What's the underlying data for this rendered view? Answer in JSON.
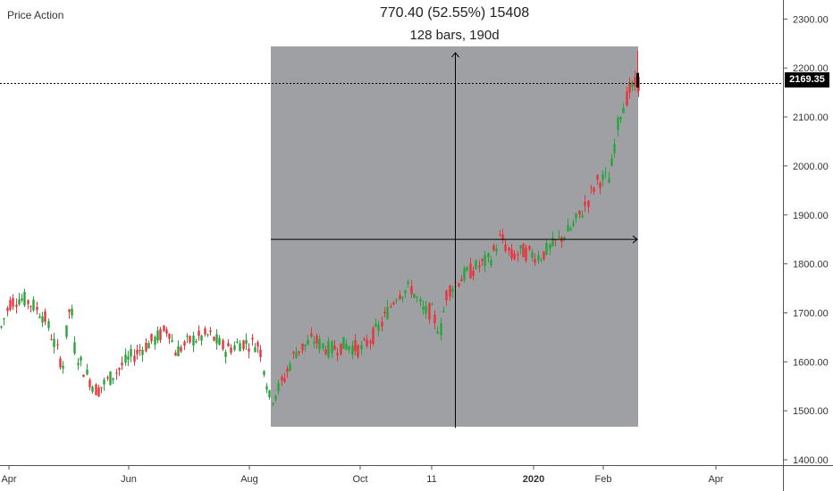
{
  "chart_title": "Price Action",
  "measurement": {
    "line1": "770.40 (52.55%) 15408",
    "line2": "128 bars, 190d"
  },
  "last_price_label": "2169.35",
  "colors": {
    "up": "#26a63a",
    "down": "#e8333a",
    "shade": "#9fa0a3",
    "axis": "#555555",
    "text": "#222222"
  },
  "chart_data": {
    "type": "candlestick",
    "title": "Price Action",
    "ylim": [
      1400,
      2300
    ],
    "y_ticks": [
      {
        "value": 2300,
        "label": "2300.00"
      },
      {
        "value": 2200,
        "label": "2200.00"
      },
      {
        "value": 2100,
        "label": "2100.00"
      },
      {
        "value": 2000,
        "label": "2000.00"
      },
      {
        "value": 1900,
        "label": "1900.00"
      },
      {
        "value": 1800,
        "label": "1800.00"
      },
      {
        "value": 1700,
        "label": "1700.00"
      },
      {
        "value": 1600,
        "label": "1600.00"
      },
      {
        "value": 1500,
        "label": "1500.00"
      },
      {
        "value": 1400,
        "label": "1400.00"
      }
    ],
    "x_ticks": [
      {
        "label": "Apr",
        "bold": false
      },
      {
        "label": "Jun",
        "bold": false
      },
      {
        "label": "Aug",
        "bold": false
      },
      {
        "label": "Oct",
        "bold": false
      },
      {
        "label": "11",
        "bold": false
      },
      {
        "label": "2020",
        "bold": true
      },
      {
        "label": "Feb",
        "bold": false
      },
      {
        "label": "Apr",
        "bold": false
      }
    ],
    "last_price": 2169.35,
    "measure_range": {
      "low": 1465,
      "high": 2235,
      "crosshair_price": 1850,
      "change": "770.40",
      "change_pct": "52.55%",
      "bars": 128,
      "days": "190d"
    },
    "trend_knots": [
      [
        0,
        1665
      ],
      [
        10,
        1720
      ],
      [
        20,
        1730
      ],
      [
        30,
        1725
      ],
      [
        40,
        1710
      ],
      [
        50,
        1690
      ],
      [
        60,
        1640
      ],
      [
        70,
        1590
      ],
      [
        76,
        1705
      ],
      [
        80,
        1700
      ],
      [
        84,
        1620
      ],
      [
        96,
        1575
      ],
      [
        108,
        1540
      ],
      [
        122,
        1565
      ],
      [
        140,
        1600
      ],
      [
        160,
        1630
      ],
      [
        176,
        1650
      ],
      [
        188,
        1670
      ],
      [
        196,
        1620
      ],
      [
        214,
        1645
      ],
      [
        234,
        1655
      ],
      [
        252,
        1625
      ],
      [
        270,
        1640
      ],
      [
        290,
        1635
      ],
      [
        302,
        1520
      ],
      [
        316,
        1560
      ],
      [
        330,
        1620
      ],
      [
        350,
        1645
      ],
      [
        368,
        1625
      ],
      [
        386,
        1635
      ],
      [
        404,
        1625
      ],
      [
        424,
        1670
      ],
      [
        444,
        1740
      ],
      [
        460,
        1750
      ],
      [
        474,
        1700
      ],
      [
        482,
        1705
      ],
      [
        492,
        1660
      ],
      [
        500,
        1745
      ],
      [
        514,
        1770
      ],
      [
        530,
        1790
      ],
      [
        548,
        1810
      ],
      [
        560,
        1855
      ],
      [
        572,
        1815
      ],
      [
        584,
        1825
      ],
      [
        604,
        1815
      ],
      [
        620,
        1840
      ],
      [
        640,
        1875
      ],
      [
        652,
        1910
      ],
      [
        668,
        1970
      ],
      [
        682,
        1975
      ],
      [
        692,
        2100
      ],
      [
        704,
        2155
      ],
      [
        714,
        2170
      ]
    ]
  }
}
